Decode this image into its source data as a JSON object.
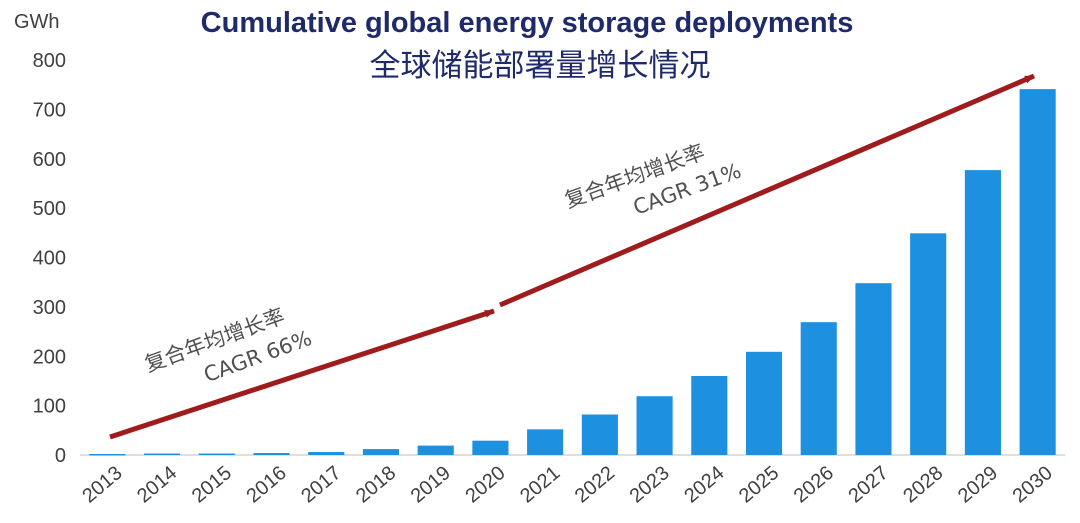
{
  "chart_data": {
    "type": "bar",
    "title": "Cumulative global energy storage deployments",
    "subtitle": "全球储能部署量增长情况",
    "unit_label": "GWh",
    "ylim": [
      0,
      800
    ],
    "yticks": [
      "0",
      "100",
      "200",
      "300",
      "400",
      "500",
      "600",
      "700",
      "800"
    ],
    "categories": [
      "2013",
      "2014",
      "2015",
      "2016",
      "2017",
      "2018",
      "2019",
      "2020",
      "2021",
      "2022",
      "2023",
      "2024",
      "2025",
      "2026",
      "2027",
      "2028",
      "2029",
      "2030"
    ],
    "values": [
      2,
      3,
      3,
      4,
      6,
      12,
      19,
      29,
      52,
      82,
      119,
      160,
      209,
      269,
      348,
      449,
      577,
      741
    ],
    "bar_color": "#1e90e0",
    "arrow_color": "#a01c1c",
    "annotations": [
      {
        "line1": "复合年均增长率",
        "line2": "CAGR 66%"
      },
      {
        "line1": "复合年均增长率",
        "line2": "CAGR 31%"
      }
    ]
  }
}
